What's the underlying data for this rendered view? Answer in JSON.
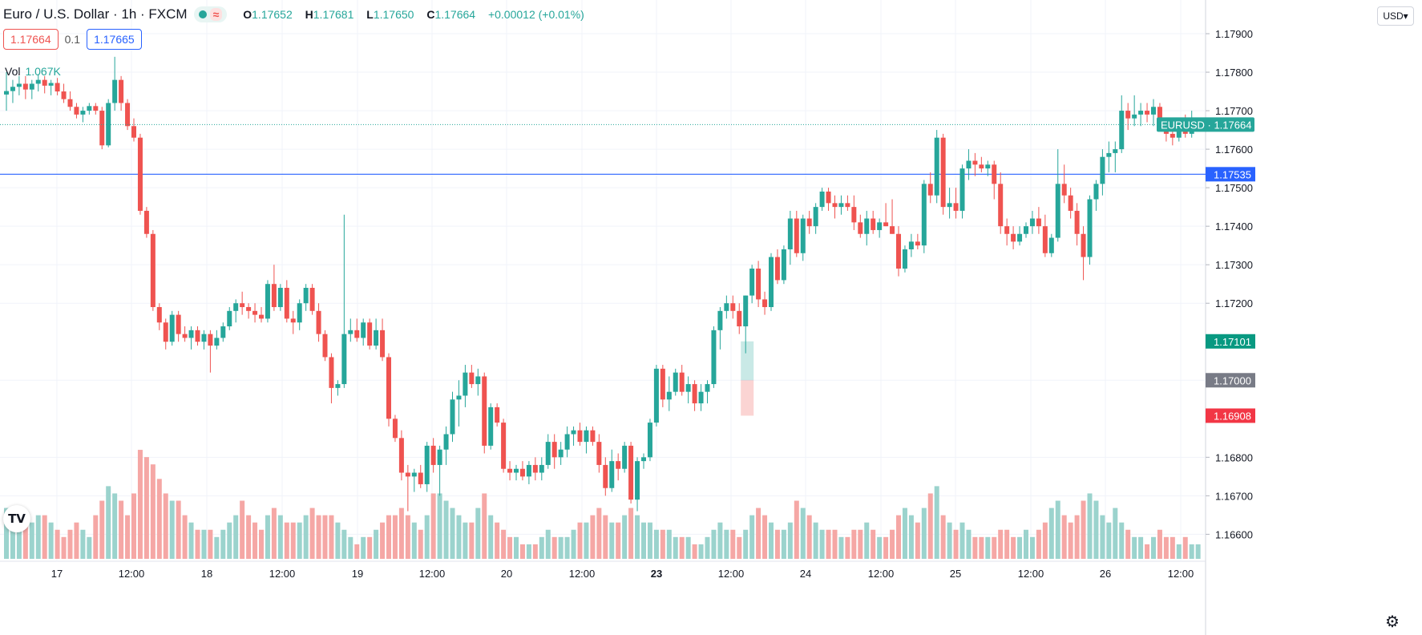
{
  "header": {
    "title": "Euro / U.S. Dollar · 1h · FXCM",
    "ohlc": {
      "o_label": "O",
      "o": "1.17652",
      "h_label": "H",
      "h": "1.17681",
      "l_label": "L",
      "l": "1.17650",
      "c_label": "C",
      "c": "1.17664",
      "change": "+0.00012 (+0.01%)"
    },
    "status_icon": "market-open-dot-icon",
    "wave_icon": "wave-icon"
  },
  "quote": {
    "sell": "1.17664",
    "spread": "0.1",
    "buy": "1.17665"
  },
  "volume": {
    "label": "Vol",
    "value": "1.067K"
  },
  "currency_button": "USD",
  "logo_text": "TV",
  "settings_icon": "gear-icon",
  "colors": {
    "up": "#26a69a",
    "down": "#ef5350",
    "up_vol": "#9bd3cd",
    "down_vol": "#f5a7a5",
    "line": "#2962ff",
    "grid": "#f0f3fa"
  },
  "chart_data": {
    "type": "candlestick",
    "symbol": "EURUSD",
    "y_ticks": [
      "1.17900",
      "1.17800",
      "1.17700",
      "1.17600",
      "1.17500",
      "1.17400",
      "1.17300",
      "1.17200",
      "1.17000",
      "1.16800",
      "1.16700",
      "1.16600"
    ],
    "ylim": [
      1.1653,
      1.1795
    ],
    "x_ticks": [
      "17",
      "12:00",
      "18",
      "12:00",
      "19",
      "12:00",
      "20",
      "12:00",
      "23",
      "12:00",
      "24",
      "12:00",
      "25",
      "12:00",
      "26",
      "12:00"
    ],
    "price_labels": [
      {
        "text": "EURUSD · 1.17664",
        "value": 1.17664,
        "kind": "current"
      },
      {
        "text": "1.17535",
        "value": 1.17535,
        "kind": "hline"
      },
      {
        "text": "1.17101",
        "value": 1.17101,
        "kind": "up"
      },
      {
        "text": "1.17000",
        "value": 1.17,
        "kind": "gray"
      },
      {
        "text": "1.16908",
        "value": 1.16908,
        "kind": "down"
      }
    ],
    "horizontal_line": 1.17535,
    "position_box": {
      "x_index": 116,
      "entry": 1.17,
      "target": 1.17101,
      "stop": 1.16908
    },
    "candles": [
      [
        1.17742,
        1.178,
        1.177,
        1.17751,
        7
      ],
      [
        1.17751,
        1.1778,
        1.1772,
        1.17762,
        6
      ],
      [
        1.17762,
        1.1779,
        1.1774,
        1.1777,
        5
      ],
      [
        1.1777,
        1.1779,
        1.1773,
        1.17755,
        6
      ],
      [
        1.17755,
        1.1778,
        1.1773,
        1.1777,
        5
      ],
      [
        1.1777,
        1.17795,
        1.1775,
        1.1778,
        6
      ],
      [
        1.1778,
        1.1779,
        1.17745,
        1.17765,
        6
      ],
      [
        1.17765,
        1.1778,
        1.1774,
        1.17772,
        5
      ],
      [
        1.17772,
        1.17785,
        1.1774,
        1.1775,
        4
      ],
      [
        1.1775,
        1.1777,
        1.1772,
        1.1773,
        3
      ],
      [
        1.1773,
        1.1775,
        1.177,
        1.1771,
        4
      ],
      [
        1.1771,
        1.1772,
        1.1768,
        1.1769,
        5
      ],
      [
        1.1769,
        1.1771,
        1.1767,
        1.177,
        4
      ],
      [
        1.177,
        1.1772,
        1.1769,
        1.17712,
        3
      ],
      [
        1.17712,
        1.1772,
        1.1769,
        1.177,
        6
      ],
      [
        1.177,
        1.1771,
        1.176,
        1.1761,
        8
      ],
      [
        1.1761,
        1.1773,
        1.17605,
        1.1772,
        10
      ],
      [
        1.1772,
        1.1784,
        1.177,
        1.1778,
        9
      ],
      [
        1.1778,
        1.1779,
        1.177,
        1.1772,
        8
      ],
      [
        1.1772,
        1.1773,
        1.1765,
        1.1766,
        6
      ],
      [
        1.1766,
        1.1768,
        1.1762,
        1.1763,
        9
      ],
      [
        1.1763,
        1.1764,
        1.1743,
        1.1744,
        15
      ],
      [
        1.1744,
        1.1745,
        1.1737,
        1.1738,
        14
      ],
      [
        1.1738,
        1.1739,
        1.1718,
        1.1719,
        13
      ],
      [
        1.1719,
        1.172,
        1.1713,
        1.1715,
        11
      ],
      [
        1.1715,
        1.1716,
        1.1708,
        1.171,
        9
      ],
      [
        1.171,
        1.1718,
        1.1709,
        1.1717,
        8
      ],
      [
        1.1717,
        1.1718,
        1.171,
        1.1712,
        8
      ],
      [
        1.1712,
        1.1714,
        1.171,
        1.1711,
        6
      ],
      [
        1.1711,
        1.1714,
        1.1708,
        1.1713,
        5
      ],
      [
        1.1713,
        1.1714,
        1.1709,
        1.171,
        4
      ],
      [
        1.171,
        1.1713,
        1.1708,
        1.1712,
        4
      ],
      [
        1.1712,
        1.1713,
        1.1702,
        1.1709,
        4
      ],
      [
        1.1709,
        1.1713,
        1.1708,
        1.1711,
        3
      ],
      [
        1.1711,
        1.1715,
        1.171,
        1.1714,
        4
      ],
      [
        1.1714,
        1.1719,
        1.1713,
        1.1718,
        5
      ],
      [
        1.1718,
        1.1721,
        1.1715,
        1.172,
        6
      ],
      [
        1.172,
        1.1723,
        1.1717,
        1.1719,
        8
      ],
      [
        1.1719,
        1.172,
        1.1716,
        1.1718,
        6
      ],
      [
        1.1718,
        1.172,
        1.1715,
        1.1717,
        5
      ],
      [
        1.1717,
        1.1719,
        1.1715,
        1.1716,
        4
      ],
      [
        1.1716,
        1.1726,
        1.1715,
        1.1725,
        6
      ],
      [
        1.1725,
        1.173,
        1.1718,
        1.1719,
        7
      ],
      [
        1.1719,
        1.1725,
        1.1718,
        1.1724,
        6
      ],
      [
        1.1724,
        1.1726,
        1.1715,
        1.1716,
        5
      ],
      [
        1.1716,
        1.1718,
        1.1712,
        1.1715,
        5
      ],
      [
        1.1715,
        1.1721,
        1.1713,
        1.172,
        5
      ],
      [
        1.172,
        1.1725,
        1.1718,
        1.1724,
        6
      ],
      [
        1.1724,
        1.1725,
        1.1717,
        1.1718,
        7
      ],
      [
        1.1718,
        1.172,
        1.171,
        1.1712,
        6
      ],
      [
        1.1712,
        1.1713,
        1.1705,
        1.1706,
        6
      ],
      [
        1.1706,
        1.1707,
        1.1694,
        1.1698,
        6
      ],
      [
        1.1698,
        1.17,
        1.1696,
        1.1699,
        5
      ],
      [
        1.1699,
        1.1743,
        1.1698,
        1.1712,
        4
      ],
      [
        1.1712,
        1.1716,
        1.171,
        1.1713,
        3
      ],
      [
        1.1713,
        1.1716,
        1.171,
        1.1711,
        2
      ],
      [
        1.1711,
        1.1716,
        1.1709,
        1.1715,
        3
      ],
      [
        1.1715,
        1.1716,
        1.1708,
        1.1709,
        3
      ],
      [
        1.1709,
        1.1716,
        1.1708,
        1.1713,
        4
      ],
      [
        1.1713,
        1.1716,
        1.1705,
        1.1706,
        5
      ],
      [
        1.1706,
        1.1707,
        1.1688,
        1.169,
        6
      ],
      [
        1.169,
        1.1691,
        1.1684,
        1.1685,
        6
      ],
      [
        1.1685,
        1.1687,
        1.1674,
        1.1676,
        7
      ],
      [
        1.1676,
        1.1678,
        1.1666,
        1.1675,
        6
      ],
      [
        1.1675,
        1.1677,
        1.1671,
        1.1676,
        5
      ],
      [
        1.1676,
        1.1678,
        1.1672,
        1.1673,
        4
      ],
      [
        1.1673,
        1.1684,
        1.1671,
        1.1683,
        6
      ],
      [
        1.1683,
        1.1685,
        1.1676,
        1.1678,
        9
      ],
      [
        1.1678,
        1.1683,
        1.167,
        1.1682,
        9
      ],
      [
        1.1682,
        1.1688,
        1.1678,
        1.1686,
        8
      ],
      [
        1.1686,
        1.1697,
        1.1684,
        1.1695,
        7
      ],
      [
        1.1695,
        1.17,
        1.1688,
        1.1696,
        6
      ],
      [
        1.1696,
        1.1704,
        1.1693,
        1.1702,
        5
      ],
      [
        1.1702,
        1.1704,
        1.1698,
        1.1699,
        5
      ],
      [
        1.1699,
        1.1703,
        1.1696,
        1.1701,
        7
      ],
      [
        1.1701,
        1.1702,
        1.1681,
        1.1683,
        9
      ],
      [
        1.1683,
        1.1694,
        1.1682,
        1.1693,
        6
      ],
      [
        1.1693,
        1.1694,
        1.1688,
        1.1689,
        5
      ],
      [
        1.1689,
        1.169,
        1.1676,
        1.1677,
        4
      ],
      [
        1.1677,
        1.1679,
        1.1674,
        1.1676,
        3
      ],
      [
        1.1676,
        1.1678,
        1.1674,
        1.1677,
        3
      ],
      [
        1.1677,
        1.1679,
        1.1674,
        1.1675,
        2
      ],
      [
        1.1675,
        1.1679,
        1.1673,
        1.1678,
        2
      ],
      [
        1.1678,
        1.168,
        1.1674,
        1.1676,
        2
      ],
      [
        1.1676,
        1.168,
        1.1674,
        1.1678,
        3
      ],
      [
        1.1678,
        1.1686,
        1.1677,
        1.1684,
        4
      ],
      [
        1.1684,
        1.1686,
        1.1677,
        1.168,
        3
      ],
      [
        1.168,
        1.1684,
        1.1678,
        1.1682,
        3
      ],
      [
        1.1682,
        1.1688,
        1.168,
        1.1686,
        3
      ],
      [
        1.1686,
        1.1688,
        1.1683,
        1.1687,
        4
      ],
      [
        1.1687,
        1.1689,
        1.1683,
        1.1684,
        5
      ],
      [
        1.1684,
        1.1688,
        1.1681,
        1.1687,
        5
      ],
      [
        1.1687,
        1.1688,
        1.1683,
        1.1684,
        6
      ],
      [
        1.1684,
        1.1686,
        1.1676,
        1.1678,
        7
      ],
      [
        1.1678,
        1.168,
        1.167,
        1.1672,
        6
      ],
      [
        1.1672,
        1.1682,
        1.1671,
        1.1679,
        5
      ],
      [
        1.1679,
        1.1681,
        1.1674,
        1.1677,
        5
      ],
      [
        1.1677,
        1.1684,
        1.1676,
        1.1683,
        6
      ],
      [
        1.1683,
        1.1684,
        1.1668,
        1.1669,
        7
      ],
      [
        1.1669,
        1.168,
        1.1666,
        1.1679,
        6
      ],
      [
        1.1679,
        1.1681,
        1.1677,
        1.168,
        5
      ],
      [
        1.168,
        1.169,
        1.1679,
        1.1689,
        5
      ],
      [
        1.1689,
        1.1704,
        1.1688,
        1.1703,
        4
      ],
      [
        1.1703,
        1.1704,
        1.1693,
        1.1695,
        4
      ],
      [
        1.1695,
        1.1701,
        1.1692,
        1.1697,
        4
      ],
      [
        1.1697,
        1.1703,
        1.1696,
        1.1702,
        3
      ],
      [
        1.1702,
        1.1704,
        1.1696,
        1.1697,
        3
      ],
      [
        1.1697,
        1.1701,
        1.1694,
        1.1699,
        3
      ],
      [
        1.1699,
        1.17,
        1.1692,
        1.1694,
        2
      ],
      [
        1.1694,
        1.1699,
        1.1692,
        1.1697,
        2
      ],
      [
        1.1697,
        1.17,
        1.1694,
        1.1699,
        3
      ],
      [
        1.1699,
        1.1714,
        1.1698,
        1.1713,
        4
      ],
      [
        1.1713,
        1.1719,
        1.1708,
        1.1718,
        5
      ],
      [
        1.1718,
        1.1722,
        1.1716,
        1.172,
        4
      ],
      [
        1.172,
        1.1722,
        1.1716,
        1.1718,
        4
      ],
      [
        1.1718,
        1.172,
        1.1712,
        1.1714,
        3
      ],
      [
        1.1714,
        1.1722,
        1.1707,
        1.1722,
        4
      ],
      [
        1.1722,
        1.173,
        1.172,
        1.1729,
        6
      ],
      [
        1.1729,
        1.1731,
        1.1719,
        1.1721,
        7
      ],
      [
        1.1721,
        1.1723,
        1.1717,
        1.1719,
        6
      ],
      [
        1.1719,
        1.1733,
        1.1718,
        1.1732,
        5
      ],
      [
        1.1732,
        1.1734,
        1.1725,
        1.1726,
        4
      ],
      [
        1.1726,
        1.1735,
        1.1725,
        1.1734,
        4
      ],
      [
        1.1734,
        1.1744,
        1.173,
        1.1742,
        5
      ],
      [
        1.1742,
        1.1744,
        1.1732,
        1.1733,
        8
      ],
      [
        1.1733,
        1.1743,
        1.1731,
        1.1742,
        7
      ],
      [
        1.1742,
        1.1744,
        1.1738,
        1.174,
        6
      ],
      [
        1.174,
        1.1746,
        1.1738,
        1.1745,
        5
      ],
      [
        1.1745,
        1.175,
        1.1744,
        1.1749,
        4
      ],
      [
        1.1749,
        1.175,
        1.1744,
        1.1746,
        4
      ],
      [
        1.1746,
        1.1748,
        1.1742,
        1.1745,
        4
      ],
      [
        1.1745,
        1.1748,
        1.1743,
        1.1746,
        3
      ],
      [
        1.1746,
        1.1748,
        1.1744,
        1.1745,
        3
      ],
      [
        1.1745,
        1.1748,
        1.1739,
        1.1741,
        4
      ],
      [
        1.1741,
        1.1743,
        1.1737,
        1.1738,
        4
      ],
      [
        1.1738,
        1.1744,
        1.1735,
        1.1742,
        5
      ],
      [
        1.1742,
        1.1744,
        1.1738,
        1.1739,
        4
      ],
      [
        1.1739,
        1.1742,
        1.1737,
        1.1741,
        3
      ],
      [
        1.1741,
        1.1746,
        1.174,
        1.174,
        3
      ],
      [
        1.174,
        1.1747,
        1.1738,
        1.1738,
        4
      ],
      [
        1.1738,
        1.174,
        1.1727,
        1.1729,
        6
      ],
      [
        1.1729,
        1.1735,
        1.1728,
        1.1734,
        7
      ],
      [
        1.1734,
        1.1738,
        1.1732,
        1.1736,
        6
      ],
      [
        1.1736,
        1.1738,
        1.1734,
        1.1735,
        5
      ],
      [
        1.1735,
        1.1752,
        1.1733,
        1.1751,
        7
      ],
      [
        1.1751,
        1.1754,
        1.1746,
        1.1748,
        9
      ],
      [
        1.1748,
        1.1765,
        1.1746,
        1.1763,
        10
      ],
      [
        1.1763,
        1.1764,
        1.1743,
        1.1745,
        6
      ],
      [
        1.1745,
        1.175,
        1.1742,
        1.1746,
        5
      ],
      [
        1.1746,
        1.175,
        1.1742,
        1.1744,
        4
      ],
      [
        1.1744,
        1.1756,
        1.1742,
        1.1755,
        5
      ],
      [
        1.1755,
        1.176,
        1.1752,
        1.1757,
        4
      ],
      [
        1.1757,
        1.1759,
        1.1753,
        1.1756,
        3
      ],
      [
        1.1756,
        1.1758,
        1.1754,
        1.1755,
        3
      ],
      [
        1.1755,
        1.1757,
        1.1753,
        1.1756,
        3
      ],
      [
        1.1756,
        1.1757,
        1.1747,
        1.1751,
        3
      ],
      [
        1.1751,
        1.1754,
        1.1738,
        1.174,
        4
      ],
      [
        1.174,
        1.1742,
        1.1735,
        1.1738,
        4
      ],
      [
        1.1738,
        1.174,
        1.1734,
        1.1736,
        3
      ],
      [
        1.1736,
        1.174,
        1.1735,
        1.1738,
        3
      ],
      [
        1.1738,
        1.1741,
        1.1737,
        1.174,
        4
      ],
      [
        1.174,
        1.1744,
        1.1738,
        1.1742,
        3
      ],
      [
        1.1742,
        1.1745,
        1.1738,
        1.174,
        4
      ],
      [
        1.174,
        1.1743,
        1.1732,
        1.1733,
        5
      ],
      [
        1.1733,
        1.1738,
        1.1732,
        1.1737,
        7
      ],
      [
        1.1737,
        1.176,
        1.1736,
        1.1751,
        8
      ],
      [
        1.1751,
        1.1756,
        1.1746,
        1.1748,
        6
      ],
      [
        1.1748,
        1.175,
        1.1742,
        1.1744,
        5
      ],
      [
        1.1744,
        1.1746,
        1.1735,
        1.1738,
        6
      ],
      [
        1.1738,
        1.174,
        1.1726,
        1.1732,
        8
      ],
      [
        1.1732,
        1.1748,
        1.173,
        1.1747,
        9
      ],
      [
        1.1747,
        1.1752,
        1.1744,
        1.1751,
        8
      ],
      [
        1.1751,
        1.176,
        1.1748,
        1.1758,
        6
      ],
      [
        1.1758,
        1.1762,
        1.1754,
        1.1759,
        5
      ],
      [
        1.1759,
        1.1762,
        1.1754,
        1.176,
        7
      ],
      [
        1.176,
        1.1774,
        1.1759,
        1.177,
        5
      ],
      [
        1.177,
        1.1772,
        1.1765,
        1.1768,
        4
      ],
      [
        1.1768,
        1.1774,
        1.1766,
        1.1769,
        3
      ],
      [
        1.1769,
        1.1772,
        1.1766,
        1.177,
        3
      ],
      [
        1.177,
        1.1772,
        1.1767,
        1.1769,
        2
      ],
      [
        1.1769,
        1.1773,
        1.1766,
        1.1771,
        3
      ],
      [
        1.1771,
        1.1772,
        1.1765,
        1.1766,
        4
      ],
      [
        1.1766,
        1.1768,
        1.1762,
        1.1764,
        3
      ],
      [
        1.1764,
        1.1766,
        1.1761,
        1.1763,
        3
      ],
      [
        1.1763,
        1.1767,
        1.1762,
        1.1765,
        2
      ],
      [
        1.1765,
        1.1769,
        1.1763,
        1.1764,
        3
      ],
      [
        1.1764,
        1.177,
        1.1763,
        1.1765,
        2
      ],
      [
        1.17652,
        1.17681,
        1.1765,
        1.17664,
        2
      ]
    ]
  }
}
